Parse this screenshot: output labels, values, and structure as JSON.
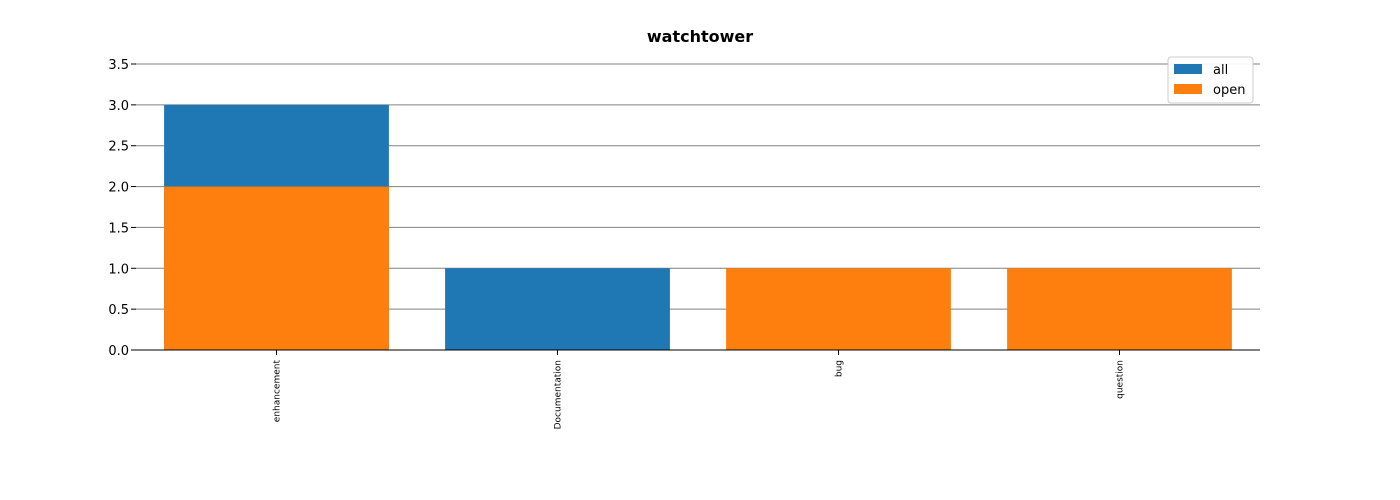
{
  "chart_data": {
    "type": "bar",
    "title": "watchtower",
    "categories": [
      "enhancement",
      "Documentation",
      "bug",
      "question"
    ],
    "series": [
      {
        "name": "all",
        "values": [
          3,
          1,
          0,
          0
        ],
        "color": "#1f77b4"
      },
      {
        "name": "open",
        "values": [
          2,
          0,
          1,
          1
        ],
        "color": "#ff7f0e"
      }
    ],
    "ylim": [
      0,
      3.5
    ],
    "yticks": [
      "0.0",
      "0.5",
      "1.0",
      "1.5",
      "2.0",
      "2.5",
      "3.0",
      "3.5"
    ],
    "grid": true,
    "legend": "top-right"
  }
}
